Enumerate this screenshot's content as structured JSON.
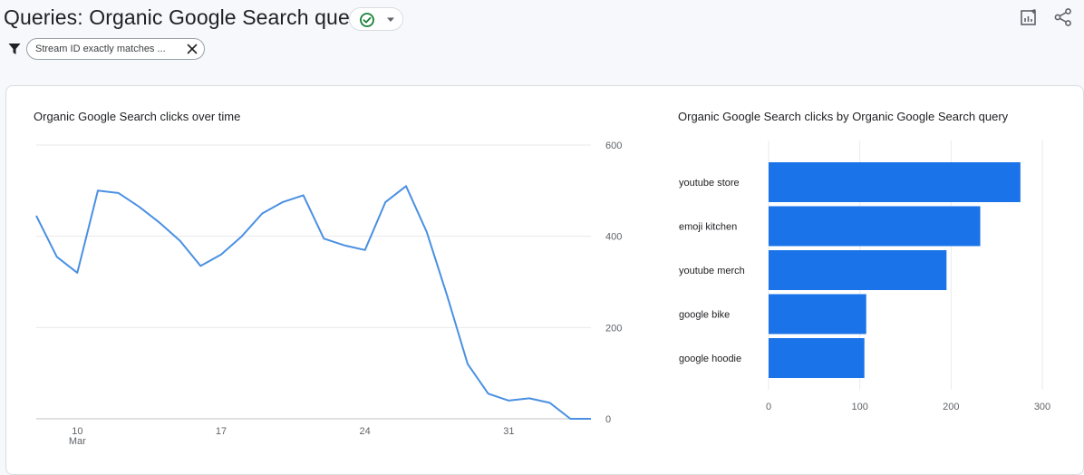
{
  "header": {
    "title": "Queries: Organic Google Search query",
    "filter_chip": "Stream ID exactly matches ...",
    "icons": [
      "check-circle-icon",
      "caret-down-icon",
      "filter-icon",
      "close-icon",
      "edit-report-icon",
      "share-icon"
    ]
  },
  "colors": {
    "line": "#4a90e2",
    "bar": "#1a73e8",
    "check": "#188038",
    "grid": "#e8eaed",
    "axis_text": "#5f6368"
  },
  "chart_data": [
    {
      "type": "line",
      "title": "Organic Google Search clicks over time",
      "xlabel": "",
      "ylabel": "",
      "x_tick_labels": [
        "10",
        "17",
        "24",
        "31"
      ],
      "x_tick_month": "Mar",
      "x_tick_days": [
        10,
        17,
        24,
        31
      ],
      "x_first_day": 8,
      "x_last_day": 35,
      "y_tick_labels": [
        "600",
        "400",
        "200",
        "0"
      ],
      "ylim": [
        0,
        600
      ],
      "grid": true,
      "series": [
        {
          "values": [
            445,
            355,
            320,
            500,
            495,
            465,
            430,
            390,
            335,
            360,
            400,
            450,
            475,
            490,
            395,
            380,
            370,
            475,
            510,
            410,
            270,
            120,
            55,
            40,
            45,
            35,
            0,
            0
          ]
        }
      ]
    },
    {
      "type": "bar",
      "orientation": "horizontal",
      "title": "Organic Google Search clicks by Organic Google Search query",
      "categories": [
        "youtube store",
        "emoji kitchen",
        "youtube merch",
        "google bike",
        "google hoodie"
      ],
      "values": [
        276,
        232,
        195,
        107,
        105
      ],
      "x_tick_labels": [
        "0",
        "100",
        "200",
        "300"
      ],
      "xlim": [
        0,
        300
      ],
      "grid": true
    }
  ]
}
